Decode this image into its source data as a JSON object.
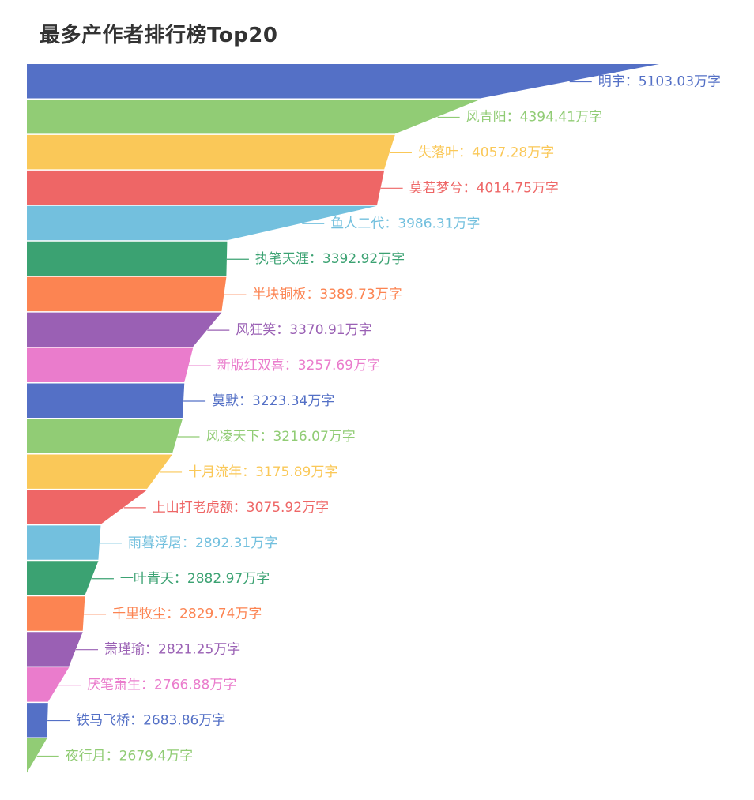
{
  "chart_data": {
    "type": "funnel",
    "title": "最多产作者排行榜Top20",
    "label_suffix": "万字",
    "label_separator": "：",
    "categories": [
      "明宇",
      "风青阳",
      "失落叶",
      "莫若梦兮",
      "鱼人二代",
      "执笔天涯",
      "半块铜板",
      "风狂笑",
      "新版红双喜",
      "莫默",
      "风凌天下",
      "十月流年",
      "上山打老虎额",
      "雨暮浮屠",
      "一叶青天",
      "千里牧尘",
      "萧瑾瑜",
      "厌笔萧生",
      "铁马飞桥",
      "夜行月"
    ],
    "values": [
      5103.03,
      4394.41,
      4057.28,
      4014.75,
      3986.31,
      3392.92,
      3389.73,
      3370.91,
      3257.69,
      3223.34,
      3216.07,
      3175.89,
      3075.92,
      2892.31,
      2882.97,
      2829.74,
      2821.25,
      2766.88,
      2683.86,
      2679.4
    ],
    "value_labels": [
      "5103.03",
      "4394.41",
      "4057.28",
      "4014.75",
      "3986.31",
      "3392.92",
      "3389.73",
      "3370.91",
      "3257.69",
      "3223.34",
      "3216.07",
      "3175.89",
      "3075.92",
      "2892.31",
      "2882.97",
      "2829.74",
      "2821.25",
      "2766.88",
      "2683.86",
      "2679.4"
    ],
    "colors": [
      "#5470c6",
      "#91cc75",
      "#fac858",
      "#ee6666",
      "#73c0de",
      "#3ba272",
      "#fc8452",
      "#9a60b4",
      "#ea7ccc"
    ],
    "sort": "descending",
    "alignment": "left",
    "legend": "none"
  }
}
